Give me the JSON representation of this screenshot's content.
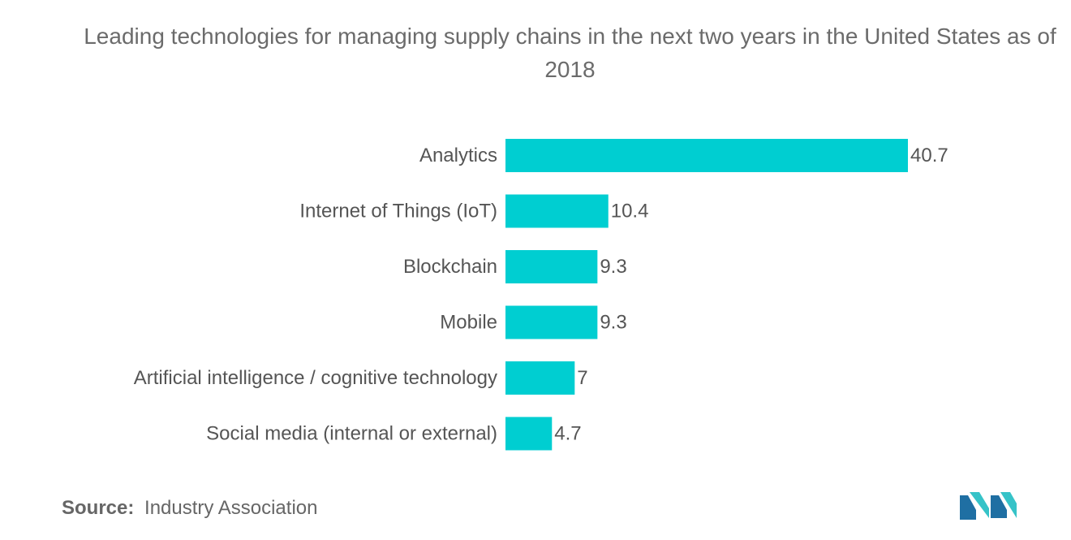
{
  "chart_data": {
    "type": "bar",
    "orientation": "horizontal",
    "title": "Leading technologies for managing supply chains in the next two years in the United States as of 2018",
    "categories": [
      "Analytics",
      "Internet of Things (IoT)",
      "Blockchain",
      "Mobile",
      "Artificial intelligence / cognitive technology",
      "Social media (internal or external)"
    ],
    "values": [
      40.7,
      10.4,
      9.3,
      9.3,
      7,
      4.7
    ],
    "value_labels": [
      "40.7",
      "10.4",
      "9.3",
      "9.3",
      "7",
      "4.7"
    ],
    "xlim": [
      0,
      40.7
    ],
    "grid": false,
    "bar_color": "#00CED1"
  },
  "source": {
    "label": "Source:",
    "text": "Industry Association"
  },
  "logo": {
    "icon": "mordor-intelligence-logo-icon",
    "colors": [
      "#1f6fa3",
      "#36c3c8"
    ]
  }
}
